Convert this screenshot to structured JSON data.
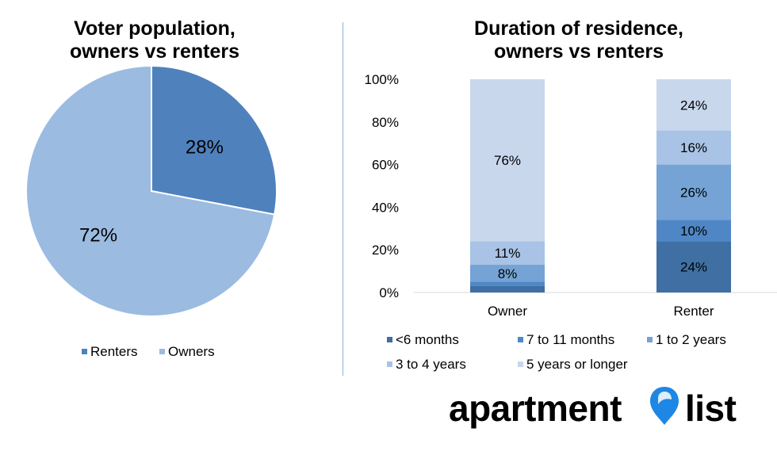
{
  "chart_data": [
    {
      "type": "pie",
      "title_lines": [
        "Voter population,",
        "owners vs renters"
      ],
      "slices": [
        {
          "name": "Renters",
          "value": 28,
          "label": "28%",
          "color": "#4f81bd"
        },
        {
          "name": "Owners",
          "value": 72,
          "label": "72%",
          "color": "#9bbbe0"
        }
      ],
      "legend": [
        "Renters",
        "Owners"
      ],
      "legend_position": "bottom"
    },
    {
      "type": "bar",
      "stacked": true,
      "title_lines": [
        "Duration of residence,",
        "owners vs renters"
      ],
      "categories": [
        "Owner",
        "Renter"
      ],
      "ylim": [
        0,
        100
      ],
      "yticks": [
        "0%",
        "20%",
        "40%",
        "60%",
        "80%",
        "100%"
      ],
      "series": [
        {
          "name": "<6 months",
          "values": [
            3,
            24
          ],
          "labels": [
            "",
            "24%"
          ],
          "color": "#3f6fa3"
        },
        {
          "name": "7 to 11 months",
          "values": [
            2,
            10
          ],
          "labels": [
            "",
            "10%"
          ],
          "color": "#4f87c6"
        },
        {
          "name": "1 to 2 years",
          "values": [
            8,
            26
          ],
          "labels": [
            "8%",
            "26%"
          ],
          "color": "#75a3d6"
        },
        {
          "name": "3 to 4 years",
          "values": [
            11,
            16
          ],
          "labels": [
            "11%",
            "16%"
          ],
          "color": "#a8c3e5"
        },
        {
          "name": "5 years or longer",
          "values": [
            76,
            24
          ],
          "labels": [
            "76%",
            "24%"
          ],
          "color": "#c8d7ec"
        }
      ],
      "legend_position": "bottom"
    }
  ],
  "logo": {
    "text_left": "apartment",
    "text_right": "list",
    "pin_color": "#1e87e5"
  }
}
